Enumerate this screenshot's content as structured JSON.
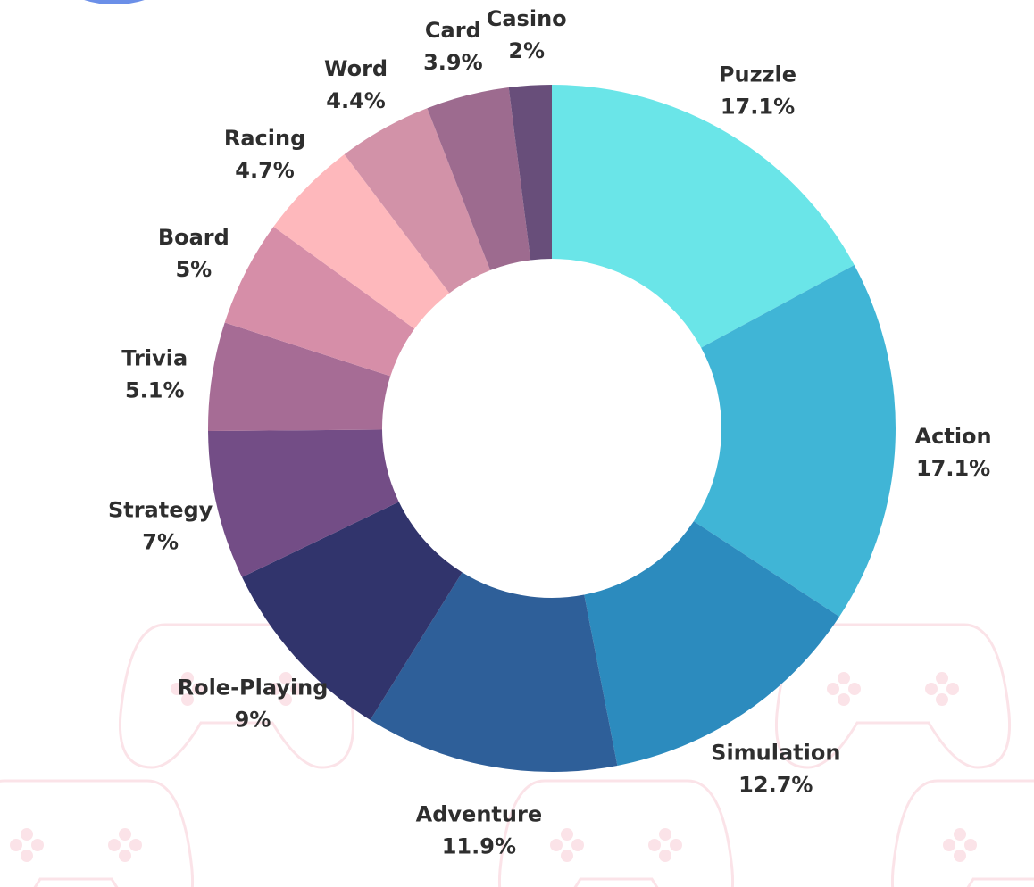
{
  "chart_data": {
    "type": "pie",
    "donut": true,
    "start_angle_deg": 0,
    "direction": "clockwise",
    "slices": [
      {
        "label": "Puzzle",
        "value": 17.1,
        "display": "17.1%",
        "color": "#6ae5e8"
      },
      {
        "label": "Action",
        "value": 17.1,
        "display": "17.1%",
        "color": "#40b5d6"
      },
      {
        "label": "Simulation",
        "value": 12.7,
        "display": "12.7%",
        "color": "#2c8bbe"
      },
      {
        "label": "Adventure",
        "value": 11.9,
        "display": "11.9%",
        "color": "#2e5f99"
      },
      {
        "label": "Role-Playing",
        "value": 9,
        "display": "9%",
        "color": "#31346c"
      },
      {
        "label": "Strategy",
        "value": 7,
        "display": "7%",
        "color": "#734d86"
      },
      {
        "label": "Trivia",
        "value": 5.1,
        "display": "5.1%",
        "color": "#a66c95"
      },
      {
        "label": "Board",
        "value": 5,
        "display": "5%",
        "color": "#d68ea8"
      },
      {
        "label": "Racing",
        "value": 4.7,
        "display": "4.7%",
        "color": "#feb8bc"
      },
      {
        "label": "Word",
        "value": 4.4,
        "display": "4.4%",
        "color": "#d292a8"
      },
      {
        "label": "Card",
        "value": 3.9,
        "display": "3.9%",
        "color": "#9d6b8f"
      },
      {
        "label": "Casino",
        "value": 2,
        "display": "2%",
        "color": "#684e7a"
      }
    ]
  },
  "colors": {
    "background": "#ffffff",
    "label_text": "#2e2e2e",
    "decoration": "#fbe3e8",
    "corner_accent": "#6b8fe8"
  },
  "decorations": {
    "background_icon": "gamepad-icon",
    "corner_icon": "blue-circle-corner"
  }
}
